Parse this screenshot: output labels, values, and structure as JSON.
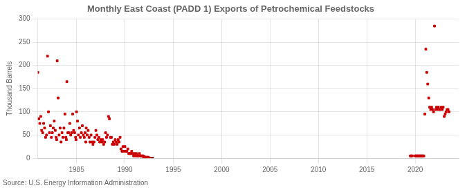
{
  "chart_data": {
    "type": "scatter",
    "title": "Monthly East Coast (PADD 1) Exports of Petrochemical Feedstocks",
    "ylabel": "Thousand Barrels",
    "source": "Source: U.S. Energy Information Administration",
    "color": "#cc0000",
    "marker": "square",
    "grid": true,
    "xlim": [
      1981,
      2024.5
    ],
    "ylim": [
      0,
      300
    ],
    "xticks": [
      1985,
      1990,
      1995,
      2000,
      2005,
      2010,
      2015,
      2020
    ],
    "yticks": [
      0,
      50,
      100,
      150,
      200,
      250,
      300
    ],
    "band": {
      "x": [
        1991.8,
        1993.0
      ],
      "y": [
        0,
        2
      ],
      "color": "#8b0000"
    },
    "x": [
      1981.0,
      1981.1,
      1981.2,
      1981.3,
      1981.4,
      1981.5,
      1981.6,
      1981.7,
      1981.8,
      1981.9,
      1982.0,
      1982.1,
      1982.2,
      1982.3,
      1982.4,
      1982.5,
      1982.6,
      1982.7,
      1982.8,
      1982.9,
      1982.95,
      1983.0,
      1983.1,
      1983.2,
      1983.3,
      1983.4,
      1983.5,
      1983.6,
      1983.7,
      1983.8,
      1983.9,
      1983.95,
      1984.0,
      1984.1,
      1984.2,
      1984.3,
      1984.4,
      1984.5,
      1984.6,
      1984.7,
      1984.8,
      1984.9,
      1984.95,
      1985.0,
      1985.1,
      1985.2,
      1985.3,
      1985.4,
      1985.5,
      1985.6,
      1985.7,
      1985.8,
      1985.9,
      1985.95,
      1986.0,
      1986.1,
      1986.2,
      1986.3,
      1986.4,
      1986.5,
      1986.6,
      1986.7,
      1986.8,
      1986.9,
      1987.0,
      1987.1,
      1987.2,
      1987.3,
      1987.4,
      1987.5,
      1987.6,
      1987.7,
      1987.8,
      1987.9,
      1988.0,
      1988.1,
      1988.2,
      1988.3,
      1988.4,
      1988.5,
      1988.6,
      1988.7,
      1988.8,
      1988.9,
      1989.0,
      1989.1,
      1989.2,
      1989.3,
      1989.4,
      1989.5,
      1989.6,
      1989.7,
      1989.8,
      1989.9,
      1990.0,
      1990.1,
      1990.2,
      1990.3,
      1990.4,
      1990.5,
      1990.6,
      1990.7,
      1990.8,
      1990.9,
      1991.0,
      1991.1,
      1991.2,
      1991.3,
      1991.4,
      1991.5,
      1991.6,
      1991.7,
      1991.8,
      1991.9,
      1992.0,
      1992.1,
      1992.2,
      1992.3,
      1992.4,
      1992.5,
      2019.5,
      2019.6,
      2019.7,
      2020.0,
      2020.1,
      2020.2,
      2020.3,
      2020.4,
      2020.5,
      2020.6,
      2020.7,
      2020.8,
      2020.9,
      2021.0,
      2021.1,
      2021.2,
      2021.3,
      2021.4,
      2021.5,
      2021.6,
      2021.7,
      2021.8,
      2021.9,
      2022.0,
      2022.1,
      2022.2,
      2022.3,
      2022.4,
      2022.5,
      2022.6,
      2022.7,
      2022.8,
      2022.9,
      2023.0,
      2023.1,
      2023.2,
      2023.3,
      2023.4,
      2023.5
    ],
    "values": [
      185,
      85,
      75,
      90,
      60,
      55,
      75,
      65,
      45,
      50,
      220,
      100,
      55,
      70,
      45,
      55,
      65,
      80,
      60,
      45,
      40,
      210,
      130,
      50,
      65,
      35,
      55,
      45,
      65,
      95,
      45,
      40,
      165,
      55,
      55,
      75,
      50,
      55,
      95,
      60,
      55,
      45,
      40,
      100,
      80,
      50,
      65,
      45,
      55,
      70,
      50,
      45,
      55,
      35,
      65,
      50,
      60,
      45,
      35,
      50,
      35,
      30,
      35,
      45,
      60,
      50,
      40,
      45,
      35,
      40,
      35,
      40,
      30,
      35,
      55,
      45,
      50,
      90,
      85,
      45,
      45,
      30,
      35,
      30,
      40,
      35,
      30,
      40,
      35,
      45,
      20,
      15,
      25,
      15,
      25,
      15,
      15,
      20,
      10,
      10,
      10,
      15,
      10,
      5,
      10,
      5,
      10,
      5,
      5,
      10,
      5,
      5,
      5,
      5,
      3,
      2,
      2,
      2,
      2,
      1,
      5,
      5,
      5,
      5,
      5,
      5,
      5,
      5,
      5,
      5,
      5,
      5,
      5,
      95,
      235,
      185,
      160,
      130,
      110,
      105,
      110,
      105,
      100,
      285,
      105,
      110,
      105,
      110,
      105,
      105,
      110,
      105,
      110,
      90,
      95,
      100,
      105,
      105,
      100
    ]
  }
}
